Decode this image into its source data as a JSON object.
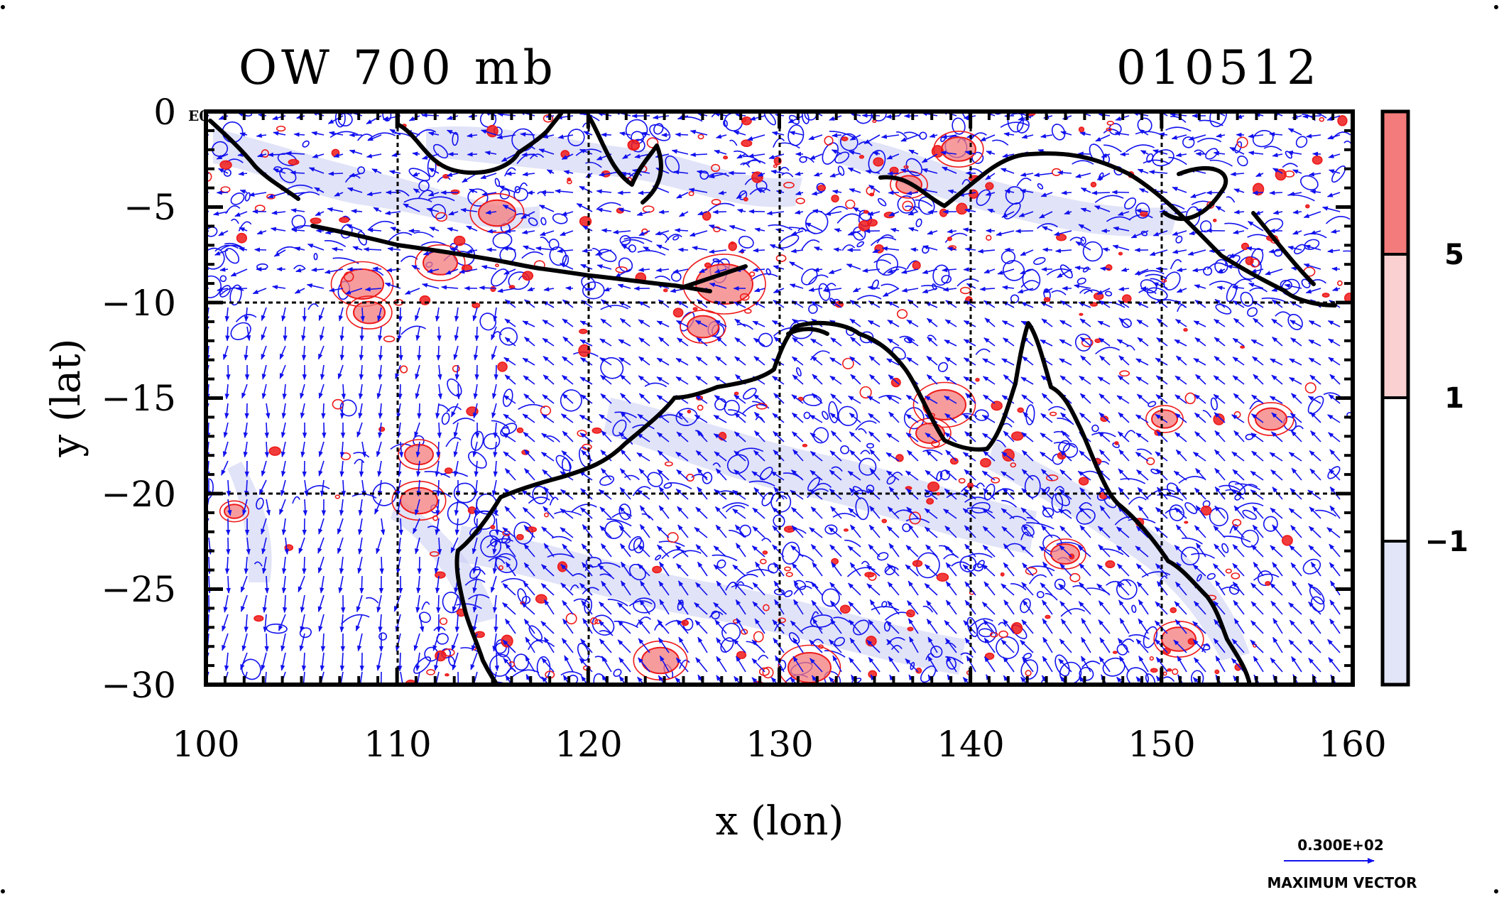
{
  "title": {
    "left": "OW 700 mb",
    "right": "010512"
  },
  "corner_tag": "E0",
  "map": {
    "lon_range": [
      100,
      160
    ],
    "lat_range": [
      -30,
      0
    ],
    "x_ticks": [
      "100",
      "110",
      "120",
      "130",
      "140",
      "150",
      "160"
    ],
    "y_ticks": [
      "0",
      "−5",
      "−10",
      "−15",
      "−20",
      "−25",
      "−30"
    ],
    "x_tick_values": [
      100,
      110,
      120,
      130,
      140,
      150,
      160
    ],
    "y_tick_values": [
      0,
      -5,
      -10,
      -15,
      -20,
      -25,
      -30
    ],
    "xlabel": "x (lon)",
    "ylabel": "y (lat)",
    "grid_lons": [
      110,
      120,
      130,
      140,
      150
    ],
    "grid_lats": [
      -10,
      -20
    ],
    "colors": {
      "vector": "#1010ee",
      "coast": "#000000",
      "positive_contour": "#ee1a1a",
      "negative_fill": "#c8ccf2"
    }
  },
  "colorbar": {
    "labels": [
      "5",
      "1",
      "−1"
    ],
    "levels": [
      5,
      1,
      -1
    ],
    "colors": [
      "#f47b7b",
      "#fbd0d0",
      "#ffffff",
      "#e2e4f8"
    ]
  },
  "vector_key": {
    "value_label": "0.300E+02",
    "caption": "MAXIMUM VECTOR"
  }
}
